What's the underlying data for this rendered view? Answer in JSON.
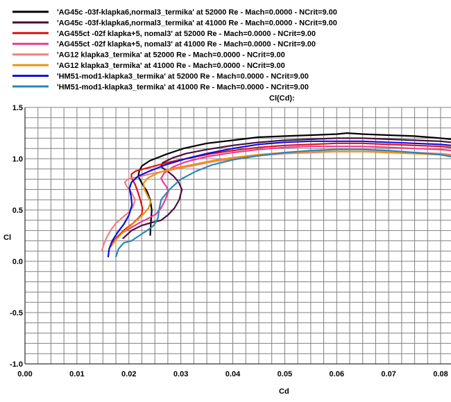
{
  "chart_data": {
    "type": "line",
    "title": "Cl(Cd):",
    "xlabel": "Cd",
    "ylabel": "Cl",
    "xlim": [
      0.0,
      0.082
    ],
    "ylim": [
      -1.0,
      1.5
    ],
    "x_ticks": [
      "0.00",
      "0.01",
      "0.02",
      "0.03",
      "0.04",
      "0.05",
      "0.06",
      "0.07",
      "0.08"
    ],
    "y_ticks": [
      "1.5",
      "1.0",
      "0.5",
      "0.0",
      "-0.5",
      "-1.0"
    ],
    "grid": true,
    "legend_position": "top-left",
    "series": [
      {
        "name": "'AG45c -03f-klapka6,normal3_termika' at 52000 Re - Mach=0.0000 - NCrit=9.00",
        "color": "#000000",
        "x": [
          0.0241,
          0.0242,
          0.0244,
          0.0241,
          0.0235,
          0.0225,
          0.0218,
          0.022,
          0.0225,
          0.024,
          0.027,
          0.0305,
          0.035,
          0.04,
          0.045,
          0.05,
          0.055,
          0.06,
          0.062,
          0.065,
          0.07,
          0.075,
          0.08,
          0.082
        ],
        "y": [
          0.25,
          0.35,
          0.5,
          0.6,
          0.68,
          0.76,
          0.83,
          0.88,
          0.93,
          0.98,
          1.04,
          1.1,
          1.15,
          1.18,
          1.21,
          1.22,
          1.23,
          1.24,
          1.25,
          1.24,
          1.23,
          1.22,
          1.2,
          1.19
        ]
      },
      {
        "name": "'AG45c -03f-klapka6,normal3_termika' at 41000 Re - Mach=0.0000 - NCrit=9.00",
        "color": "#4a0d38",
        "x": [
          0.0188,
          0.0205,
          0.0225,
          0.0245,
          0.0262,
          0.0275,
          0.0288,
          0.0297,
          0.0302,
          0.0296,
          0.0286,
          0.0274,
          0.0262,
          0.0265,
          0.0285,
          0.031,
          0.035,
          0.04,
          0.045,
          0.05,
          0.055,
          0.06,
          0.065,
          0.07,
          0.075,
          0.08,
          0.082
        ],
        "y": [
          0.22,
          0.3,
          0.35,
          0.38,
          0.4,
          0.45,
          0.52,
          0.6,
          0.7,
          0.77,
          0.83,
          0.88,
          0.92,
          0.96,
          1.01,
          1.05,
          1.09,
          1.13,
          1.16,
          1.18,
          1.19,
          1.2,
          1.2,
          1.19,
          1.18,
          1.17,
          1.16
        ]
      },
      {
        "name": "'AG455ct -02f klapka+5, nomal3' at 52000 Re - Mach=0.0000 - NCrit=9.00",
        "color": "#dd1111",
        "x": [
          0.0168,
          0.0178,
          0.0192,
          0.0208,
          0.0218,
          0.0225,
          0.0226,
          0.0222,
          0.0217,
          0.0212,
          0.0205,
          0.0205,
          0.0213,
          0.0228,
          0.025,
          0.028,
          0.032,
          0.036,
          0.04,
          0.045,
          0.05,
          0.055,
          0.06,
          0.065,
          0.07,
          0.075,
          0.08,
          0.082
        ],
        "y": [
          0.18,
          0.24,
          0.31,
          0.37,
          0.42,
          0.46,
          0.52,
          0.6,
          0.68,
          0.75,
          0.81,
          0.85,
          0.88,
          0.9,
          0.93,
          0.97,
          1.01,
          1.05,
          1.08,
          1.11,
          1.13,
          1.14,
          1.15,
          1.15,
          1.14,
          1.13,
          1.12,
          1.11
        ]
      },
      {
        "name": "'AG455ct -02f klapka+5, nomal3' at 41000 Re - Mach=0.0000 - NCrit=9.00",
        "color": "#ec3a96",
        "x": [
          0.0188,
          0.0205,
          0.0222,
          0.0238,
          0.0252,
          0.0262,
          0.027,
          0.0276,
          0.0272,
          0.0266,
          0.0262,
          0.0268,
          0.0285,
          0.031,
          0.035,
          0.04,
          0.045,
          0.05,
          0.055,
          0.06,
          0.065,
          0.07,
          0.075,
          0.08,
          0.082
        ],
        "y": [
          0.28,
          0.33,
          0.38,
          0.42,
          0.46,
          0.52,
          0.6,
          0.68,
          0.73,
          0.77,
          0.81,
          0.86,
          0.92,
          0.97,
          1.02,
          1.06,
          1.09,
          1.11,
          1.12,
          1.12,
          1.12,
          1.11,
          1.1,
          1.09,
          1.08
        ]
      },
      {
        "name": "'AG12 klapka3_termika' at 52000 Re - Mach=0.0000 - NCrit=9.00",
        "color": "#f08080",
        "x": [
          0.0148,
          0.0152,
          0.0158,
          0.0166,
          0.0175,
          0.0186,
          0.0198,
          0.0208,
          0.0212,
          0.0205,
          0.0196,
          0.0192,
          0.0198,
          0.0215,
          0.024,
          0.028,
          0.032,
          0.036,
          0.04,
          0.045,
          0.05,
          0.055,
          0.06,
          0.065,
          0.07,
          0.075,
          0.08,
          0.082
        ],
        "y": [
          0.1,
          0.17,
          0.24,
          0.31,
          0.37,
          0.42,
          0.47,
          0.53,
          0.6,
          0.67,
          0.73,
          0.77,
          0.8,
          0.82,
          0.85,
          0.89,
          0.93,
          0.97,
          1.0,
          1.03,
          1.05,
          1.06,
          1.07,
          1.07,
          1.07,
          1.06,
          1.05,
          1.04
        ]
      },
      {
        "name": "'AG12 klapka3_termika' at 41000 Re - Mach=0.0000 - NCrit=9.00",
        "color": "#f0900a",
        "x": [
          0.0165,
          0.0175,
          0.0188,
          0.0202,
          0.0215,
          0.0228,
          0.0238,
          0.0242,
          0.0236,
          0.023,
          0.0228,
          0.0236,
          0.0255,
          0.028,
          0.032,
          0.036,
          0.04,
          0.045,
          0.05,
          0.055,
          0.06,
          0.065,
          0.07,
          0.075,
          0.08,
          0.082
        ],
        "y": [
          0.14,
          0.21,
          0.28,
          0.34,
          0.4,
          0.46,
          0.52,
          0.58,
          0.64,
          0.7,
          0.76,
          0.81,
          0.86,
          0.9,
          0.94,
          0.98,
          1.01,
          1.04,
          1.06,
          1.07,
          1.07,
          1.07,
          1.06,
          1.05,
          1.04,
          1.03
        ]
      },
      {
        "name": "'HM51-mod1-klapka3_termika' at 52000 Re - Mach=0.0000 - NCrit=9.00",
        "color": "#0d0de0",
        "x": [
          0.016,
          0.0162,
          0.0168,
          0.0178,
          0.019,
          0.02,
          0.0206,
          0.0204,
          0.0201,
          0.0205,
          0.0218,
          0.024,
          0.027,
          0.031,
          0.035,
          0.04,
          0.045,
          0.05,
          0.055,
          0.06,
          0.065,
          0.07,
          0.075,
          0.08,
          0.082
        ],
        "y": [
          0.04,
          0.12,
          0.2,
          0.28,
          0.36,
          0.45,
          0.55,
          0.64,
          0.71,
          0.77,
          0.83,
          0.88,
          0.94,
          1.0,
          1.05,
          1.1,
          1.14,
          1.16,
          1.17,
          1.17,
          1.17,
          1.16,
          1.15,
          1.14,
          1.13
        ]
      },
      {
        "name": "'HM51-mod1-klapka3_termika' at 41000 Re - Mach=0.0000 - NCrit=9.00",
        "color": "#2a87b5",
        "x": [
          0.0175,
          0.018,
          0.019,
          0.0205,
          0.022,
          0.0235,
          0.0248,
          0.0256,
          0.0258,
          0.0262,
          0.0278,
          0.03,
          0.033,
          0.036,
          0.04,
          0.045,
          0.05,
          0.055,
          0.06,
          0.065,
          0.07,
          0.075,
          0.08,
          0.082
        ],
        "y": [
          0.04,
          0.12,
          0.18,
          0.2,
          0.25,
          0.3,
          0.35,
          0.42,
          0.5,
          0.6,
          0.7,
          0.8,
          0.88,
          0.94,
          0.99,
          1.03,
          1.06,
          1.08,
          1.09,
          1.09,
          1.08,
          1.06,
          1.04,
          1.02
        ]
      }
    ]
  }
}
